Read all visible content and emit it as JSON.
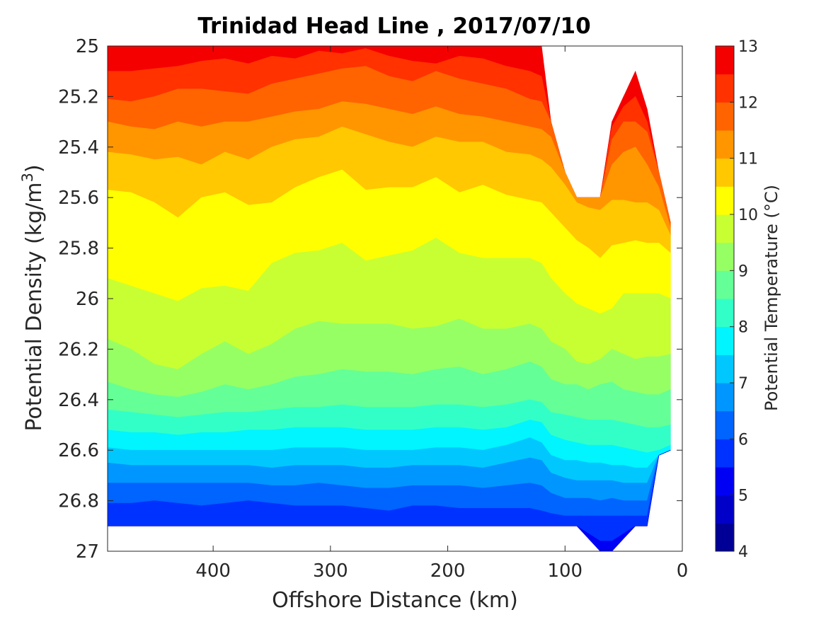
{
  "chart_data": {
    "type": "heatmap",
    "title": "Trinidad Head Line , 2017/07/10",
    "xlabel": "Offshore Distance (km)",
    "ylabel": "Potential Density (kg/m3)",
    "ylabel_main": "Potential Density (kg/m",
    "ylabel_sup": "3",
    "ylabel_close": ")",
    "xlim": [
      490,
      0
    ],
    "x_reversed": true,
    "ylim": [
      25,
      27
    ],
    "y_reversed": true,
    "x_ticks": [
      400,
      300,
      200,
      100,
      0
    ],
    "x_tick_labels": [
      "400",
      "300",
      "200",
      "100",
      "0"
    ],
    "y_ticks": [
      25,
      25.2,
      25.4,
      25.6,
      25.8,
      26,
      26.2,
      26.4,
      26.6,
      26.8,
      27
    ],
    "y_tick_labels": [
      "25",
      "25.2",
      "25.4",
      "25.6",
      "25.8",
      "26",
      "26.2",
      "26.4",
      "26.6",
      "26.8",
      "27"
    ],
    "colorbar": {
      "label": "Potential Temperature (°C)",
      "min": 4,
      "max": 13,
      "step": 0.5,
      "ticks": [
        4,
        5,
        6,
        7,
        8,
        9,
        10,
        11,
        12,
        13
      ],
      "tick_labels": [
        "4",
        "5",
        "6",
        "7",
        "8",
        "9",
        "10",
        "11",
        "12",
        "13"
      ],
      "colors": [
        "#000096",
        "#0000c8",
        "#0000f5",
        "#0032ff",
        "#0064ff",
        "#0096ff",
        "#00c8ff",
        "#00f5ff",
        "#32ffc8",
        "#64ff96",
        "#96ff64",
        "#c8ff32",
        "#ffff00",
        "#ffc800",
        "#ff9600",
        "#ff6400",
        "#ff3200",
        "#f50000"
      ]
    },
    "stations_km": [
      490,
      470,
      450,
      430,
      410,
      390,
      370,
      350,
      330,
      310,
      290,
      270,
      250,
      230,
      210,
      190,
      170,
      150,
      130,
      120,
      112,
      100,
      90,
      80,
      70,
      60,
      50,
      40,
      30,
      20,
      10
    ],
    "surface_density": [
      25.0,
      25.0,
      25.0,
      25.0,
      25.0,
      25.0,
      25.0,
      25.0,
      25.0,
      25.0,
      25.0,
      25.0,
      25.0,
      25.0,
      25.0,
      25.0,
      25.0,
      25.0,
      25.0,
      25.0,
      25.3,
      25.5,
      25.6,
      25.6,
      25.6,
      25.3,
      25.2,
      25.1,
      25.25,
      25.5,
      25.7
    ],
    "bottom_density": [
      26.9,
      26.9,
      26.9,
      26.9,
      26.9,
      26.9,
      26.9,
      26.9,
      26.9,
      26.9,
      26.9,
      26.9,
      26.9,
      26.9,
      26.9,
      26.9,
      26.9,
      26.9,
      26.9,
      26.9,
      26.9,
      26.9,
      26.9,
      26.95,
      27.0,
      27.0,
      26.95,
      26.9,
      26.9,
      26.62,
      26.6
    ],
    "isotherms": [
      {
        "temp": 12.5,
        "density": [
          25.02,
          25.03,
          25.02,
          25.01,
          25.0,
          25.0,
          25.0,
          25.0,
          25.0,
          25.0,
          25.0,
          25.0,
          25.0,
          25.0,
          25.0,
          25.0,
          25.0,
          25.0,
          25.02,
          25.03,
          25.3,
          25.5,
          25.6,
          25.6,
          25.6,
          25.3,
          25.2,
          25.12,
          25.28,
          25.5,
          25.7
        ]
      },
      {
        "temp": 12,
        "density": [
          25.1,
          25.1,
          25.09,
          25.08,
          25.06,
          25.05,
          25.07,
          25.04,
          25.05,
          25.02,
          25.03,
          25.01,
          25.04,
          25.06,
          25.07,
          25.04,
          25.05,
          25.08,
          25.1,
          25.12,
          25.3,
          25.5,
          25.6,
          25.6,
          25.6,
          25.32,
          25.24,
          25.2,
          25.3,
          25.5,
          25.7
        ]
      },
      {
        "temp": 11.5,
        "density": [
          25.21,
          25.22,
          25.2,
          25.17,
          25.17,
          25.18,
          25.19,
          25.15,
          25.13,
          25.11,
          25.09,
          25.08,
          25.12,
          25.14,
          25.1,
          25.13,
          25.15,
          25.17,
          25.21,
          25.22,
          25.3,
          25.5,
          25.6,
          25.6,
          25.6,
          25.37,
          25.3,
          25.3,
          25.34,
          25.5,
          25.7
        ]
      },
      {
        "temp": 11,
        "density": [
          25.3,
          25.32,
          25.33,
          25.3,
          25.32,
          25.3,
          25.3,
          25.28,
          25.26,
          25.25,
          25.22,
          25.23,
          25.25,
          25.27,
          25.24,
          25.27,
          25.28,
          25.3,
          25.32,
          25.33,
          25.36,
          25.5,
          25.6,
          25.6,
          25.6,
          25.47,
          25.42,
          25.4,
          25.47,
          25.56,
          25.72
        ]
      },
      {
        "temp": 10.5,
        "density": [
          25.42,
          25.43,
          25.45,
          25.44,
          25.47,
          25.42,
          25.45,
          25.4,
          25.37,
          25.36,
          25.32,
          25.35,
          25.38,
          25.4,
          25.36,
          25.38,
          25.38,
          25.42,
          25.43,
          25.45,
          25.48,
          25.55,
          25.62,
          25.64,
          25.65,
          25.61,
          25.61,
          25.62,
          25.62,
          25.65,
          25.75
        ]
      },
      {
        "temp": 10,
        "density": [
          25.57,
          25.58,
          25.62,
          25.68,
          25.6,
          25.58,
          25.63,
          25.62,
          25.56,
          25.52,
          25.49,
          25.57,
          25.56,
          25.56,
          25.52,
          25.58,
          25.55,
          25.59,
          25.61,
          25.62,
          25.66,
          25.72,
          25.77,
          25.8,
          25.84,
          25.79,
          25.78,
          25.77,
          25.78,
          25.78,
          25.82
        ]
      },
      {
        "temp": 9.5,
        "density": [
          25.92,
          25.95,
          25.98,
          26.01,
          25.96,
          25.95,
          25.97,
          25.86,
          25.82,
          25.81,
          25.78,
          25.85,
          25.83,
          25.81,
          25.76,
          25.82,
          25.84,
          25.84,
          25.84,
          25.86,
          25.92,
          25.98,
          26.02,
          26.04,
          26.06,
          26.04,
          25.98,
          25.98,
          25.98,
          25.98,
          26.0
        ]
      },
      {
        "temp": 9,
        "density": [
          26.16,
          26.2,
          26.26,
          26.28,
          26.22,
          26.17,
          26.22,
          26.18,
          26.12,
          26.09,
          26.1,
          26.1,
          26.1,
          26.12,
          26.11,
          26.08,
          26.12,
          26.12,
          26.1,
          26.12,
          26.17,
          26.2,
          26.25,
          26.26,
          26.24,
          26.2,
          26.22,
          26.24,
          26.23,
          26.23,
          26.22
        ]
      },
      {
        "temp": 8.5,
        "density": [
          26.33,
          26.36,
          26.38,
          26.39,
          26.37,
          26.34,
          26.36,
          26.34,
          26.31,
          26.3,
          26.28,
          26.29,
          26.29,
          26.3,
          26.28,
          26.27,
          26.3,
          26.28,
          26.25,
          26.27,
          26.32,
          26.34,
          26.34,
          26.36,
          26.34,
          26.33,
          26.36,
          26.37,
          26.38,
          26.38,
          26.36
        ]
      },
      {
        "temp": 8,
        "density": [
          26.44,
          26.45,
          26.46,
          26.47,
          26.46,
          26.45,
          26.45,
          26.44,
          26.43,
          26.43,
          26.42,
          26.43,
          26.43,
          26.43,
          26.42,
          26.42,
          26.43,
          26.42,
          26.4,
          26.41,
          26.45,
          26.46,
          26.47,
          26.48,
          26.48,
          26.48,
          26.49,
          26.5,
          26.51,
          26.51,
          26.5
        ]
      },
      {
        "temp": 7.5,
        "density": [
          26.52,
          26.53,
          26.53,
          26.54,
          26.53,
          26.53,
          26.52,
          26.52,
          26.51,
          26.51,
          26.51,
          26.52,
          26.52,
          26.52,
          26.51,
          26.51,
          26.52,
          26.51,
          26.48,
          26.49,
          26.54,
          26.56,
          26.57,
          26.58,
          26.58,
          26.58,
          26.59,
          26.6,
          26.61,
          26.6,
          26.58
        ]
      },
      {
        "temp": 7,
        "density": [
          26.59,
          26.6,
          26.6,
          26.6,
          26.6,
          26.6,
          26.6,
          26.6,
          26.59,
          26.59,
          26.59,
          26.6,
          26.6,
          26.6,
          26.59,
          26.59,
          26.6,
          26.58,
          26.55,
          26.57,
          26.62,
          26.64,
          26.64,
          26.65,
          26.65,
          26.66,
          26.66,
          26.67,
          26.67,
          26.62,
          26.6
        ]
      },
      {
        "temp": 6.5,
        "density": [
          26.65,
          26.66,
          26.66,
          26.66,
          26.66,
          26.66,
          26.66,
          26.67,
          26.66,
          26.66,
          26.66,
          26.67,
          26.67,
          26.66,
          26.66,
          26.66,
          26.67,
          26.65,
          26.63,
          26.64,
          26.69,
          26.71,
          26.72,
          26.72,
          26.72,
          26.72,
          26.73,
          26.73,
          26.73,
          26.62,
          26.6
        ]
      },
      {
        "temp": 6,
        "density": [
          26.73,
          26.73,
          26.73,
          26.73,
          26.73,
          26.73,
          26.73,
          26.74,
          26.74,
          26.73,
          26.74,
          26.75,
          26.75,
          26.74,
          26.74,
          26.74,
          26.75,
          26.74,
          26.73,
          26.74,
          26.77,
          26.79,
          26.79,
          26.79,
          26.8,
          26.79,
          26.8,
          26.8,
          26.8,
          26.62,
          26.6
        ]
      },
      {
        "temp": 5.5,
        "density": [
          26.81,
          26.81,
          26.8,
          26.81,
          26.82,
          26.81,
          26.8,
          26.81,
          26.82,
          26.82,
          26.82,
          26.83,
          26.84,
          26.82,
          26.82,
          26.83,
          26.83,
          26.83,
          26.83,
          26.84,
          26.85,
          26.86,
          26.86,
          26.86,
          26.86,
          26.86,
          26.86,
          26.86,
          26.86,
          26.62,
          26.6
        ]
      },
      {
        "temp": 5,
        "density": [
          26.9,
          26.9,
          26.9,
          26.9,
          26.9,
          26.9,
          26.9,
          26.9,
          26.9,
          26.9,
          26.9,
          26.9,
          26.9,
          26.9,
          26.9,
          26.9,
          26.9,
          26.9,
          26.9,
          26.9,
          26.9,
          26.9,
          26.9,
          26.93,
          26.96,
          26.96,
          26.93,
          26.9,
          26.9,
          26.62,
          26.6
        ]
      }
    ]
  }
}
